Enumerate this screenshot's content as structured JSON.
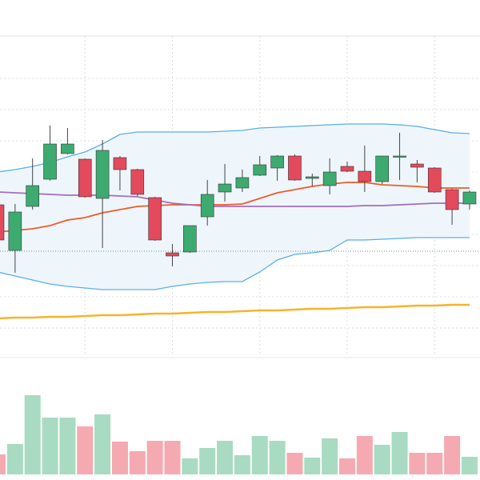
{
  "chart_data": {
    "type": "candlestick",
    "open": [
      24.4,
      18.7,
      24.2,
      27.6,
      30.8,
      30.1,
      25.2,
      30.3,
      28.8,
      25.3,
      18.4,
      18.5,
      22.9,
      26.0,
      26.5,
      28.1,
      29.0,
      30.5,
      27.7,
      26.8,
      29.2,
      28.6,
      27.3,
      30.4,
      29.5,
      29.0,
      26.3,
      24.5
    ],
    "high": [
      24.4,
      24.5,
      30.2,
      34.3,
      34.0,
      30.2,
      32.5,
      30.5,
      28.9,
      25.4,
      19.5,
      21.8,
      27.5,
      29.5,
      28.8,
      30.5,
      30.6,
      30.7,
      28.3,
      30.2,
      29.8,
      31.8,
      30.5,
      33.4,
      30.0,
      29.1,
      26.4,
      26.2
    ],
    "low": [
      20.0,
      15.9,
      23.8,
      27.4,
      30.7,
      25.3,
      19.0,
      26.2,
      25.5,
      19.9,
      16.7,
      18.4,
      21.8,
      24.8,
      26.0,
      28.0,
      27.4,
      27.4,
      26.7,
      25.7,
      28.5,
      26.0,
      27.0,
      27.5,
      27.2,
      25.9,
      21.9,
      23.8
    ],
    "close": [
      20.0,
      23.5,
      26.8,
      32.0,
      32.0,
      25.4,
      31.2,
      28.8,
      25.7,
      20.0,
      18.0,
      21.8,
      25.7,
      27.0,
      27.8,
      29.4,
      30.5,
      27.5,
      27.9,
      28.5,
      28.6,
      27.3,
      30.5,
      30.5,
      29.1,
      26.0,
      23.8,
      26.0
    ],
    "volume": [
      25,
      38,
      99,
      71,
      71,
      60,
      75,
      41,
      29,
      42,
      42,
      20,
      33,
      42,
      24,
      48,
      42,
      27,
      21,
      45,
      20,
      48,
      37,
      53,
      27,
      27,
      48,
      22
    ],
    "up_color": "#3dab70",
    "down_color": "#e34a5c",
    "volume_up_color": "#a9dac2",
    "volume_down_color": "#f5a9b1",
    "band_upper": {
      "color": "#5aaee6",
      "values": [
        28.5,
        28.8,
        29.2,
        29.7,
        30.4,
        31.0,
        32.0,
        33.2,
        33.5,
        33.5,
        33.5,
        33.5,
        33.5,
        33.6,
        33.7,
        34.0,
        34.1,
        34.2,
        34.3,
        34.4,
        34.5,
        34.5,
        34.5,
        34.4,
        34.2,
        33.8,
        33.4,
        33.3
      ]
    },
    "band_lower": {
      "color": "#5aaee6",
      "values": [
        16.0,
        15.5,
        15.0,
        14.5,
        14.2,
        14.0,
        13.8,
        13.8,
        13.8,
        13.8,
        14.2,
        14.5,
        14.7,
        14.8,
        14.8,
        16.0,
        17.5,
        18.2,
        18.4,
        18.7,
        20.0,
        20.0,
        20.1,
        20.2,
        20.3,
        20.3,
        20.3,
        20.3
      ]
    },
    "band_fill": "#eef6fc",
    "lines": [
      {
        "color": "#f05a28",
        "values": [
          21.0,
          21.2,
          21.4,
          21.8,
          22.5,
          22.8,
          23.4,
          23.8,
          24.2,
          24.3,
          24.4,
          24.4,
          24.4,
          24.4,
          24.5,
          25.2,
          25.9,
          26.3,
          26.7,
          27.0,
          27.2,
          27.2,
          26.9,
          26.8,
          26.7,
          26.5,
          26.5,
          26.5
        ]
      },
      {
        "color": "#a56cc1",
        "values": [
          26.0,
          25.9,
          25.8,
          25.7,
          25.6,
          25.6,
          25.6,
          25.5,
          25.4,
          25.0,
          24.6,
          24.4,
          24.2,
          24.2,
          24.2,
          24.2,
          24.2,
          24.2,
          24.2,
          24.2,
          24.2,
          24.3,
          24.3,
          24.4,
          24.5,
          24.6,
          24.6,
          24.6
        ]
      },
      {
        "color": "#f6b42c",
        "values": [
          10.2,
          10.3,
          10.3,
          10.4,
          10.4,
          10.5,
          10.6,
          10.6,
          10.7,
          10.8,
          10.8,
          10.9,
          11.0,
          11.0,
          11.1,
          11.2,
          11.2,
          11.3,
          11.4,
          11.4,
          11.5,
          11.6,
          11.6,
          11.7,
          11.8,
          11.8,
          11.9,
          11.9
        ]
      }
    ],
    "ylim": [
      5.5,
      45.5
    ],
    "yticks": [
      40.2,
      36.3,
      32.4,
      28.5,
      24.6,
      20.7,
      16.8,
      12.9,
      9.0
    ],
    "xticks": [
      5,
      10,
      15,
      20,
      25
    ],
    "price_line": 18.6,
    "volume_ylim": [
      0,
      150
    ],
    "grid": true
  }
}
